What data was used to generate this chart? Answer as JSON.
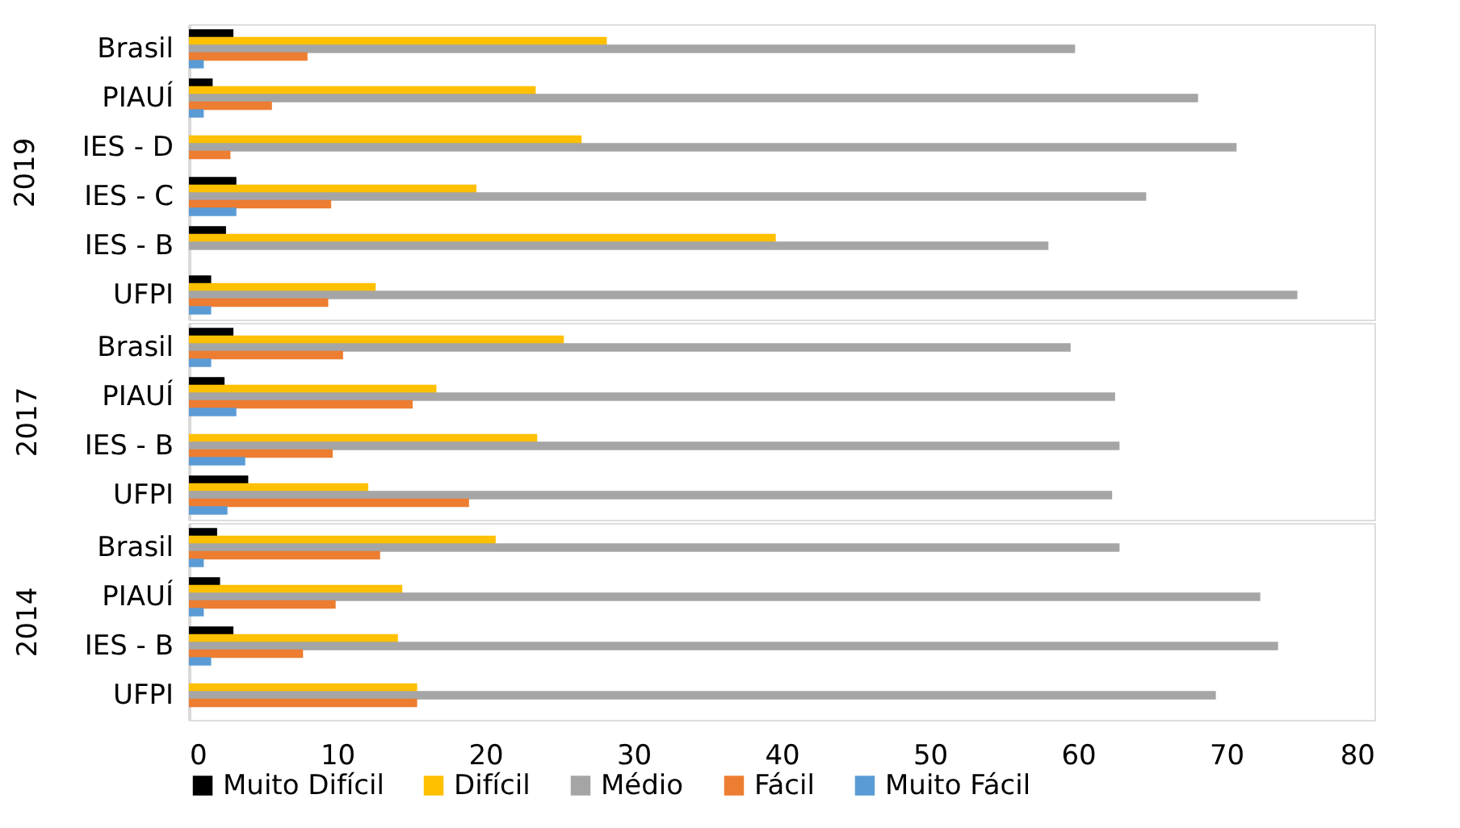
{
  "chart_data": [
    {
      "type": "bar",
      "orientation": "horizontal",
      "ylabel": "2019",
      "categories": [
        "Brasil",
        "PIAUÍ",
        "IES - D",
        "IES - C",
        "IES - B",
        "UFPI"
      ],
      "xlim": [
        0,
        80
      ],
      "xticks": [
        0,
        10,
        20,
        30,
        40,
        50,
        60,
        70,
        80
      ],
      "tick_labels": "y",
      "grid": false,
      "series": [
        {
          "color": "#000000",
          "values": [
            3.0,
            1.6,
            null,
            3.2,
            2.5,
            1.5
          ]
        },
        {
          "color": "#ffc000",
          "values": [
            28.2,
            23.4,
            26.5,
            19.4,
            39.6,
            12.6
          ]
        },
        {
          "color": "#a5a5a5",
          "values": [
            59.8,
            68.1,
            70.7,
            64.6,
            58.0,
            74.8
          ]
        },
        {
          "color": "#ed7d31",
          "values": [
            8.0,
            5.6,
            2.8,
            9.6,
            null,
            9.4
          ]
        },
        {
          "color": "#5b9bd5",
          "values": [
            1.0,
            1.0,
            null,
            3.2,
            null,
            1.5
          ]
        }
      ]
    },
    {
      "type": "bar",
      "orientation": "horizontal",
      "ylabel": "2017",
      "categories": [
        "Brasil",
        "PIAUÍ",
        "IES - B",
        "UFPI"
      ],
      "xlim": [
        0,
        80
      ],
      "xticks": [
        0,
        10,
        20,
        30,
        40,
        50,
        60,
        70,
        80
      ],
      "tick_labels": "y",
      "grid": false,
      "series": [
        {
          "color": "#000000",
          "values": [
            3.0,
            2.4,
            null,
            4.0
          ]
        },
        {
          "color": "#ffc000",
          "values": [
            25.3,
            16.7,
            23.5,
            12.1
          ]
        },
        {
          "color": "#a5a5a5",
          "values": [
            59.5,
            62.5,
            62.8,
            62.3
          ]
        },
        {
          "color": "#ed7d31",
          "values": [
            10.4,
            15.1,
            9.7,
            18.9
          ]
        },
        {
          "color": "#5b9bd5",
          "values": [
            1.5,
            3.2,
            3.8,
            2.6
          ]
        }
      ]
    },
    {
      "type": "bar",
      "orientation": "horizontal",
      "ylabel": "2014",
      "categories": [
        "Brasil",
        "PIAUÍ",
        "IES - B",
        "UFPI"
      ],
      "xlim": [
        0,
        80
      ],
      "xticks": [
        0,
        10,
        20,
        30,
        40,
        50,
        60,
        70,
        80
      ],
      "grid": false,
      "legend": "bottom",
      "series": [
        {
          "name": "Muito Difícil",
          "color": "#000000",
          "values": [
            1.9,
            2.1,
            3.0,
            null
          ]
        },
        {
          "name": "Difícil",
          "color": "#ffc000",
          "values": [
            20.7,
            14.4,
            14.1,
            15.4
          ]
        },
        {
          "name": "Médio",
          "color": "#a5a5a5",
          "values": [
            62.8,
            72.3,
            73.5,
            69.3
          ]
        },
        {
          "name": "Fácil",
          "color": "#ed7d31",
          "values": [
            12.9,
            9.9,
            7.7,
            15.4
          ]
        },
        {
          "name": "Muito Fácil",
          "color": "#5b9bd5",
          "values": [
            1.0,
            1.0,
            1.5,
            null
          ]
        }
      ]
    }
  ]
}
